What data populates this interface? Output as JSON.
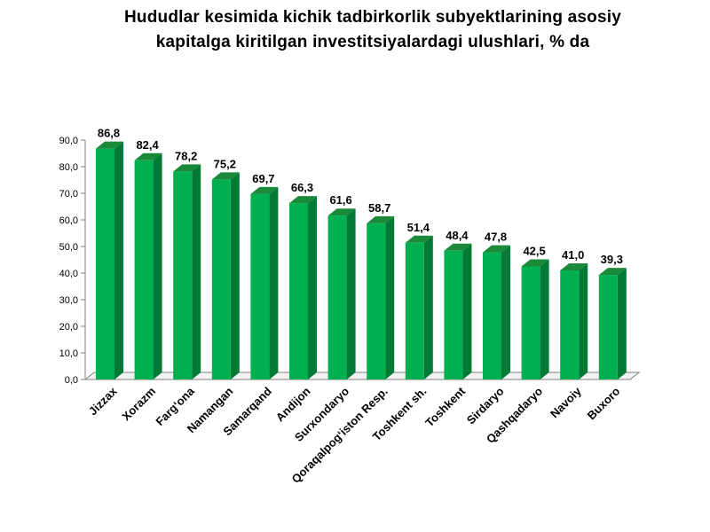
{
  "chart_data": {
    "type": "bar",
    "title_line1": "Hududlar kesimida kichik tadbirkorlik subyektlarining asosiy",
    "title_line2": "kapitalga kiritilgan investitsiyalardagi ulushlari, % da",
    "categories": [
      "Jizzax",
      "Xorazm",
      "Farg‘ona",
      "Namangan",
      "Samarqand",
      "Andijon",
      "Surxondaryo",
      "Qoraqalpog‘iston Resp.",
      "Toshkent sh.",
      "Toshkent",
      "Sirdaryo",
      "Qashqadaryo",
      "Navoiy",
      "Buxoro"
    ],
    "values": [
      86.8,
      82.4,
      78.2,
      75.2,
      69.7,
      66.3,
      61.6,
      58.7,
      51.4,
      48.4,
      47.8,
      42.5,
      41.0,
      39.3
    ],
    "value_labels": [
      "86,8",
      "82,4",
      "78,2",
      "75,2",
      "69,7",
      "66,3",
      "61,6",
      "58,7",
      "51,4",
      "48,4",
      "47,8",
      "42,5",
      "41,0",
      "39,3"
    ],
    "yticks": [
      "0,0",
      "10,0",
      "20,0",
      "30,0",
      "40,0",
      "50,0",
      "60,0",
      "70,0",
      "80,0",
      "90,0"
    ],
    "ylim": [
      0,
      90
    ],
    "grid": false,
    "legend": "none",
    "colors": {
      "bar_front": "#00b050",
      "bar_side": "#007a35",
      "bar_top": "#1a8a3a",
      "axis": "#808080"
    }
  }
}
